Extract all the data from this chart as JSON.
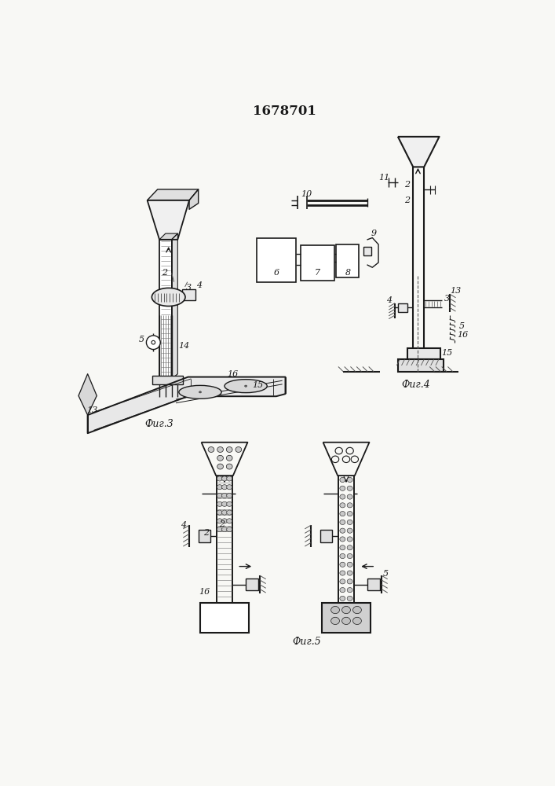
{
  "title": "1678701",
  "bg_color": "#f8f8f5",
  "line_color": "#1a1a1a",
  "fig3_label": "Фиг.3",
  "fig4_label": "Фиг.4",
  "fig5_label": "Фиг.5"
}
